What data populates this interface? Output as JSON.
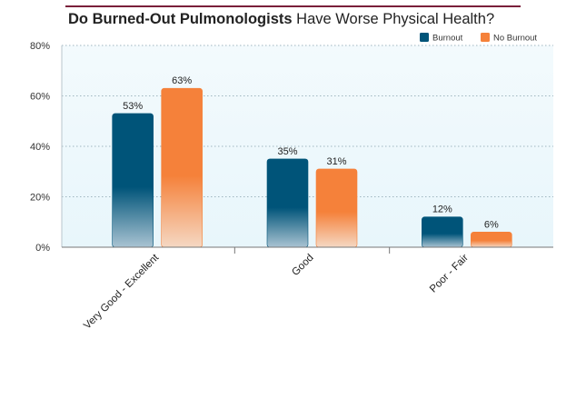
{
  "title": {
    "bold": "Do Burned-Out Pulmonologists",
    "rest": " Have Worse Physical Health?"
  },
  "colors": {
    "burnout_top": "#005479",
    "burnout_bottom": "#a9c3d2",
    "noburnout_top": "#f5813a",
    "noburnout_bottom": "#f5d8c3",
    "plot_bg_top": "#f3fafd",
    "plot_bg_bottom": "#e8f6fb",
    "title_rule": "#7a1f3a"
  },
  "chart_data": {
    "type": "bar",
    "title": "Do Burned-Out Pulmonologists Have Worse Physical Health?",
    "categories": [
      "Very Good - Excellent",
      "Good",
      "Poor - Fair"
    ],
    "series": [
      {
        "name": "Burnout",
        "values": [
          53,
          35,
          12
        ],
        "labels": [
          "53%",
          "35%",
          "12%"
        ]
      },
      {
        "name": "No Burnout",
        "values": [
          63,
          31,
          6
        ],
        "labels": [
          "63%",
          "31%",
          "6%"
        ]
      }
    ],
    "yticks": [
      "0%",
      "20%",
      "40%",
      "60%",
      "80%"
    ],
    "ylim": [
      0,
      80
    ],
    "grid": true,
    "legend_position": "top-right"
  }
}
